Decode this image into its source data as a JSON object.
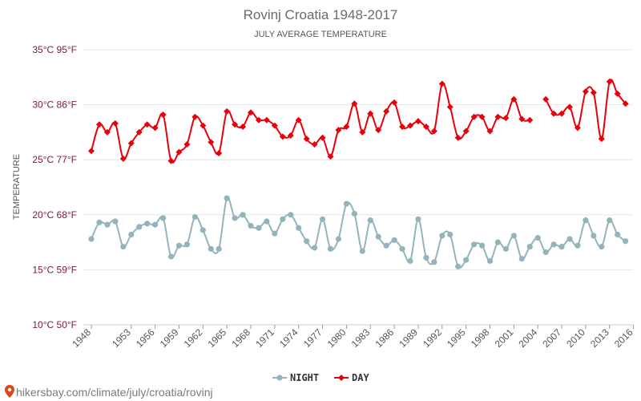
{
  "chart_data": {
    "type": "line",
    "title": "Rovinj Croatia 1948-2017",
    "subtitle": "JULY AVERAGE TEMPERATURE",
    "ylabel": "TEMPERATURE",
    "xlim": [
      1948,
      2017
    ],
    "ylim": [
      10,
      35
    ],
    "y_ticks": [
      {
        "value": 35,
        "label": "35°C 95°F"
      },
      {
        "value": 30,
        "label": "30°C 86°F"
      },
      {
        "value": 25,
        "label": "25°C 77°F"
      },
      {
        "value": 20,
        "label": "20°C 68°F"
      },
      {
        "value": 15,
        "label": "15°C 59°F"
      },
      {
        "value": 10,
        "label": "10°C 50°F"
      }
    ],
    "x_ticks": [
      1948,
      1953,
      1956,
      1959,
      1962,
      1965,
      1968,
      1971,
      1974,
      1977,
      1980,
      1983,
      1986,
      1989,
      1992,
      1995,
      1998,
      2001,
      2004,
      2007,
      2010,
      2013,
      2016
    ],
    "grid": true,
    "legend_position": "bottom",
    "series": [
      {
        "name": "NIGHT",
        "color": "#94b4bc",
        "marker": "circle",
        "values": [
          17.8,
          19.3,
          19.1,
          19.4,
          17.1,
          18.2,
          18.9,
          19.2,
          19.1,
          19.7,
          16.2,
          17.2,
          17.3,
          19.8,
          18.6,
          16.9,
          16.9,
          21.5,
          19.7,
          20.0,
          19.0,
          18.8,
          19.4,
          18.3,
          19.6,
          20.0,
          18.8,
          17.6,
          17.0,
          19.6,
          16.9,
          17.8,
          21.0,
          20.1,
          16.7,
          19.5,
          18.0,
          17.2,
          17.7,
          16.9,
          15.8,
          19.6,
          16.1,
          15.7,
          18.1,
          18.2,
          15.3,
          15.9,
          17.3,
          17.2,
          15.8,
          17.5,
          16.9,
          18.1,
          16.0,
          17.1,
          17.9,
          16.6,
          17.3,
          17.1,
          17.8,
          17.2,
          19.5,
          18.1,
          17.1,
          19.5,
          18.2,
          17.6
        ]
      },
      {
        "name": "DAY",
        "color": "#e8000b",
        "marker": "diamond",
        "values": [
          25.8,
          28.2,
          27.5,
          28.3,
          25.1,
          26.5,
          27.5,
          28.2,
          27.9,
          29.1,
          24.9,
          25.7,
          26.4,
          28.9,
          28.1,
          26.6,
          25.6,
          29.4,
          28.2,
          28.0,
          29.3,
          28.6,
          28.6,
          28.1,
          27.1,
          27.2,
          28.6,
          26.9,
          26.4,
          27.0,
          25.3,
          27.7,
          28.0,
          30.1,
          27.5,
          29.2,
          27.7,
          29.4,
          30.2,
          28.0,
          28.1,
          28.5,
          28.0,
          27.6,
          31.9,
          29.8,
          27.0,
          27.6,
          28.9,
          28.9,
          27.6,
          28.9,
          28.8,
          30.5,
          28.7,
          28.6,
          null,
          30.5,
          29.2,
          29.2,
          29.8,
          27.9,
          31.2,
          31.1,
          26.9,
          32.1,
          31.0,
          30.1
        ]
      }
    ]
  },
  "watermark": "hikersbay.com/climate/july/croatia/rovinj",
  "watermark_icon": "map-pin-icon"
}
